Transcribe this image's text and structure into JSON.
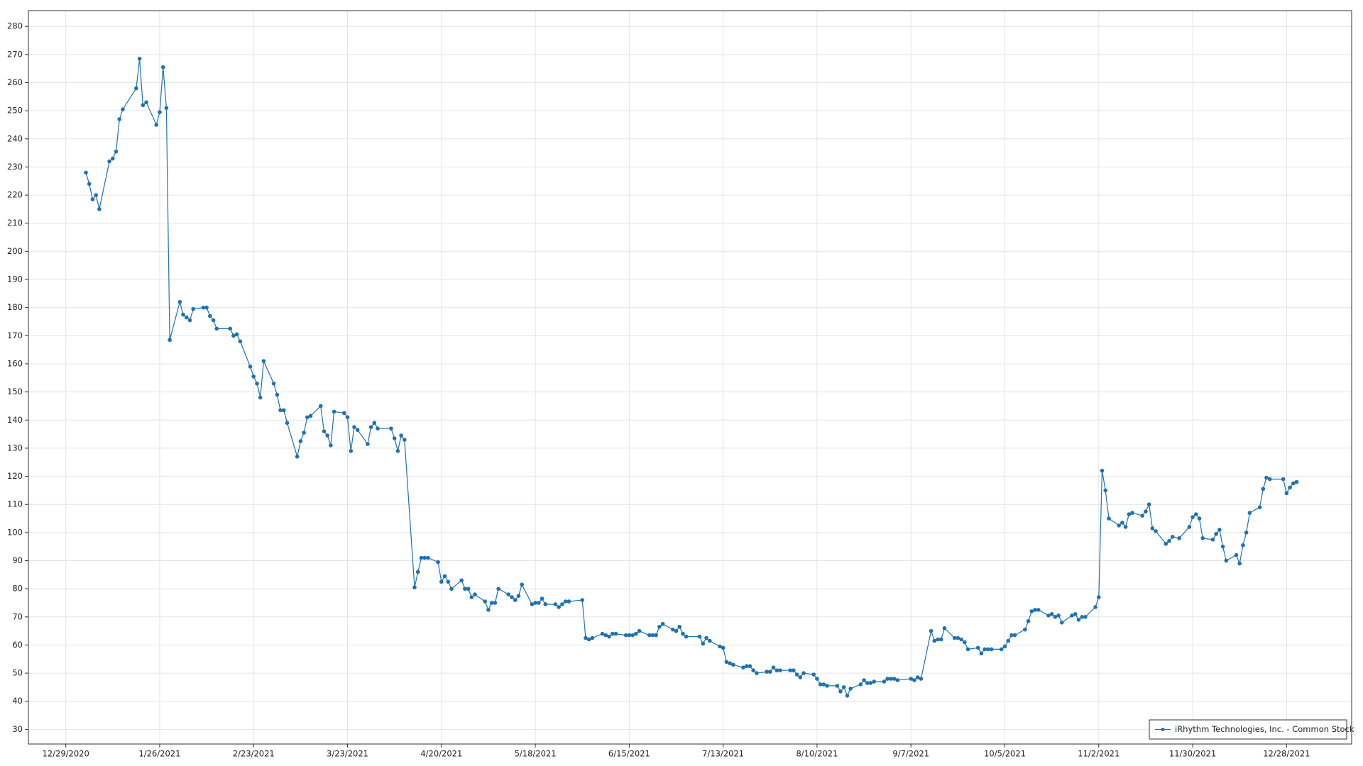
{
  "chart_data": {
    "type": "line",
    "x": [
      "1/4/2021",
      "1/5/2021",
      "1/6/2021",
      "1/7/2021",
      "1/8/2021",
      "1/11/2021",
      "1/12/2021",
      "1/13/2021",
      "1/14/2021",
      "1/15/2021",
      "1/19/2021",
      "1/20/2021",
      "1/21/2021",
      "1/22/2021",
      "1/25/2021",
      "1/26/2021",
      "1/27/2021",
      "1/28/2021",
      "1/29/2021",
      "2/1/2021",
      "2/2/2021",
      "2/3/2021",
      "2/4/2021",
      "2/5/2021",
      "2/8/2021",
      "2/9/2021",
      "2/10/2021",
      "2/11/2021",
      "2/12/2021",
      "2/16/2021",
      "2/17/2021",
      "2/18/2021",
      "2/19/2021",
      "2/22/2021",
      "2/23/2021",
      "2/24/2021",
      "2/25/2021",
      "2/26/2021",
      "3/1/2021",
      "3/2/2021",
      "3/3/2021",
      "3/4/2021",
      "3/5/2021",
      "3/8/2021",
      "3/9/2021",
      "3/10/2021",
      "3/11/2021",
      "3/12/2021",
      "3/15/2021",
      "3/16/2021",
      "3/17/2021",
      "3/18/2021",
      "3/19/2021",
      "3/22/2021",
      "3/23/2021",
      "3/24/2021",
      "3/25/2021",
      "3/26/2021",
      "3/29/2021",
      "3/30/2021",
      "3/31/2021",
      "4/1/2021",
      "4/5/2021",
      "4/6/2021",
      "4/7/2021",
      "4/8/2021",
      "4/9/2021",
      "4/12/2021",
      "4/13/2021",
      "4/14/2021",
      "4/15/2021",
      "4/16/2021",
      "4/19/2021",
      "4/20/2021",
      "4/21/2021",
      "4/22/2021",
      "4/23/2021",
      "4/26/2021",
      "4/27/2021",
      "4/28/2021",
      "4/29/2021",
      "4/30/2021",
      "5/3/2021",
      "5/4/2021",
      "5/5/2021",
      "5/6/2021",
      "5/7/2021",
      "5/10/2021",
      "5/11/2021",
      "5/12/2021",
      "5/13/2021",
      "5/14/2021",
      "5/17/2021",
      "5/18/2021",
      "5/19/2021",
      "5/20/2021",
      "5/21/2021",
      "5/24/2021",
      "5/25/2021",
      "5/26/2021",
      "5/27/2021",
      "5/28/2021",
      "6/1/2021",
      "6/2/2021",
      "6/3/2021",
      "6/4/2021",
      "6/7/2021",
      "6/8/2021",
      "6/9/2021",
      "6/10/2021",
      "6/11/2021",
      "6/14/2021",
      "6/15/2021",
      "6/16/2021",
      "6/17/2021",
      "6/18/2021",
      "6/21/2021",
      "6/22/2021",
      "6/23/2021",
      "6/24/2021",
      "6/25/2021",
      "6/28/2021",
      "6/29/2021",
      "6/30/2021",
      "7/1/2021",
      "7/2/2021",
      "7/6/2021",
      "7/7/2021",
      "7/8/2021",
      "7/9/2021",
      "7/12/2021",
      "7/13/2021",
      "7/14/2021",
      "7/15/2021",
      "7/16/2021",
      "7/19/2021",
      "7/20/2021",
      "7/21/2021",
      "7/22/2021",
      "7/23/2021",
      "7/26/2021",
      "7/27/2021",
      "7/28/2021",
      "7/29/2021",
      "7/30/2021",
      "8/2/2021",
      "8/3/2021",
      "8/4/2021",
      "8/5/2021",
      "8/6/2021",
      "8/9/2021",
      "8/10/2021",
      "8/11/2021",
      "8/12/2021",
      "8/13/2021",
      "8/16/2021",
      "8/17/2021",
      "8/18/2021",
      "8/19/2021",
      "8/20/2021",
      "8/23/2021",
      "8/24/2021",
      "8/25/2021",
      "8/26/2021",
      "8/27/2021",
      "8/30/2021",
      "8/31/2021",
      "9/1/2021",
      "9/2/2021",
      "9/3/2021",
      "9/7/2021",
      "9/8/2021",
      "9/9/2021",
      "9/10/2021",
      "9/13/2021",
      "9/14/2021",
      "9/15/2021",
      "9/16/2021",
      "9/17/2021",
      "9/20/2021",
      "9/21/2021",
      "9/22/2021",
      "9/23/2021",
      "9/24/2021",
      "9/27/2021",
      "9/28/2021",
      "9/29/2021",
      "9/30/2021",
      "10/1/2021",
      "10/4/2021",
      "10/5/2021",
      "10/6/2021",
      "10/7/2021",
      "10/8/2021",
      "10/11/2021",
      "10/12/2021",
      "10/13/2021",
      "10/14/2021",
      "10/15/2021",
      "10/18/2021",
      "10/19/2021",
      "10/20/2021",
      "10/21/2021",
      "10/22/2021",
      "10/25/2021",
      "10/26/2021",
      "10/27/2021",
      "10/28/2021",
      "10/29/2021",
      "11/1/2021",
      "11/2/2021",
      "11/3/2021",
      "11/4/2021",
      "11/5/2021",
      "11/8/2021",
      "11/9/2021",
      "11/10/2021",
      "11/11/2021",
      "11/12/2021",
      "11/15/2021",
      "11/16/2021",
      "11/17/2021",
      "11/18/2021",
      "11/19/2021",
      "11/22/2021",
      "11/23/2021",
      "11/24/2021",
      "11/26/2021",
      "11/29/2021",
      "11/30/2021",
      "12/1/2021",
      "12/2/2021",
      "12/3/2021",
      "12/6/2021",
      "12/7/2021",
      "12/8/2021",
      "12/9/2021",
      "12/10/2021",
      "12/13/2021",
      "12/14/2021",
      "12/15/2021",
      "12/16/2021",
      "12/17/2021",
      "12/20/2021",
      "12/21/2021",
      "12/22/2021",
      "12/23/2021",
      "12/27/2021",
      "12/28/2021",
      "12/29/2021",
      "12/30/2021",
      "12/31/2021"
    ],
    "series": [
      {
        "name": "iRhythm Technologies, Inc. - Common Stock",
        "color": "#1f72b0",
        "values": [
          228,
          224,
          218.5,
          220,
          215,
          232,
          233,
          235.5,
          247,
          250.5,
          258,
          268.5,
          252,
          253,
          245,
          249.5,
          265.5,
          251,
          168.5,
          182,
          177.5,
          176.5,
          175.5,
          179.5,
          180,
          180,
          177,
          175.5,
          172.5,
          172.5,
          170,
          170.5,
          168,
          159,
          155.5,
          153,
          148,
          161,
          153,
          149,
          143.5,
          143.5,
          139,
          127,
          132.5,
          135.5,
          141,
          141.5,
          145,
          136,
          134.5,
          131,
          143,
          142.5,
          141,
          129,
          137.5,
          136.5,
          131.5,
          137.5,
          139,
          137,
          137,
          133.5,
          129,
          134.5,
          133,
          80.5,
          86,
          91,
          91,
          91,
          89.5,
          82.5,
          84.5,
          82.5,
          80,
          83,
          80,
          80,
          77,
          78,
          75.5,
          72.5,
          75,
          75,
          80,
          78,
          77,
          76,
          77.5,
          81.5,
          74.5,
          75,
          75,
          76.5,
          74.5,
          74.5,
          73.5,
          74.5,
          75.5,
          75.5,
          76,
          62.5,
          62,
          62.5,
          64,
          63.5,
          63,
          64,
          64,
          63.5,
          63.5,
          63.5,
          64,
          65,
          63.5,
          63.5,
          63.5,
          66.5,
          67.5,
          65.5,
          65,
          66.5,
          64,
          63,
          63,
          60.5,
          62.5,
          61.5,
          59.5,
          59,
          54,
          53.5,
          53,
          52,
          52.5,
          52.5,
          51,
          50,
          50.5,
          50.5,
          52,
          51,
          51,
          51,
          51,
          49.5,
          48.5,
          50,
          49.5,
          48,
          46,
          46,
          45.5,
          45.5,
          43.5,
          45,
          42,
          44.5,
          46,
          47.5,
          46.5,
          46.5,
          47,
          47,
          48,
          48,
          48,
          47.5,
          48,
          47.5,
          48.5,
          48,
          65,
          61.5,
          62,
          62,
          66,
          62.5,
          62.5,
          62,
          61,
          58.5,
          59,
          57,
          58.5,
          58.5,
          58.5,
          58.5,
          59.5,
          61.5,
          63.5,
          63.5,
          65.5,
          68.5,
          72,
          72.5,
          72.5,
          70.5,
          71,
          70,
          70.5,
          68,
          70.5,
          71,
          69,
          70,
          70,
          73.5,
          77,
          122,
          115,
          105,
          102.5,
          103.5,
          102,
          106.5,
          107,
          106,
          107.5,
          110,
          101.5,
          100.5,
          96,
          97,
          98.5,
          98,
          102,
          105.5,
          106.5,
          105,
          98,
          97.5,
          99.5,
          101,
          95,
          90,
          92,
          89,
          95.5,
          100,
          107,
          109,
          115.5,
          119.5,
          119,
          119,
          114,
          116,
          117.5,
          118
        ]
      }
    ],
    "xticks": [
      "12/29/2020",
      "1/26/2021",
      "2/23/2021",
      "3/23/2021",
      "4/20/2021",
      "5/18/2021",
      "6/15/2021",
      "7/13/2021",
      "8/10/2021",
      "9/7/2021",
      "10/5/2021",
      "11/2/2021",
      "11/30/2021",
      "12/28/2021"
    ],
    "ylim": [
      24.8,
      285.6
    ],
    "yticks": [
      30,
      40,
      50,
      60,
      70,
      80,
      90,
      100,
      110,
      120,
      130,
      140,
      150,
      160,
      170,
      180,
      190,
      200,
      210,
      220,
      230,
      240,
      250,
      260,
      270,
      280
    ],
    "grid": true,
    "legend": "lower right",
    "markers": true
  }
}
